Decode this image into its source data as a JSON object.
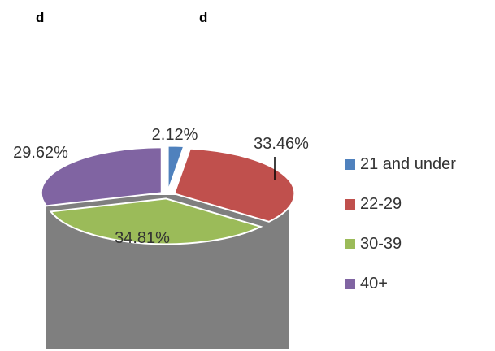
{
  "header": {
    "glyph_left": "d",
    "glyph_right": "d"
  },
  "chart_data": {
    "type": "pie",
    "title": "",
    "categories": [
      "21 and under",
      "22-29",
      "30-39",
      "40+"
    ],
    "values": [
      2.12,
      33.46,
      34.81,
      29.62
    ],
    "data_labels": [
      "2.12%",
      "33.46%",
      "34.81%",
      "29.62%"
    ],
    "colors": [
      "#4f81bd",
      "#c0504d",
      "#9bbb59",
      "#8064a2"
    ],
    "legend_position": "right",
    "style": "3d-exploded"
  }
}
